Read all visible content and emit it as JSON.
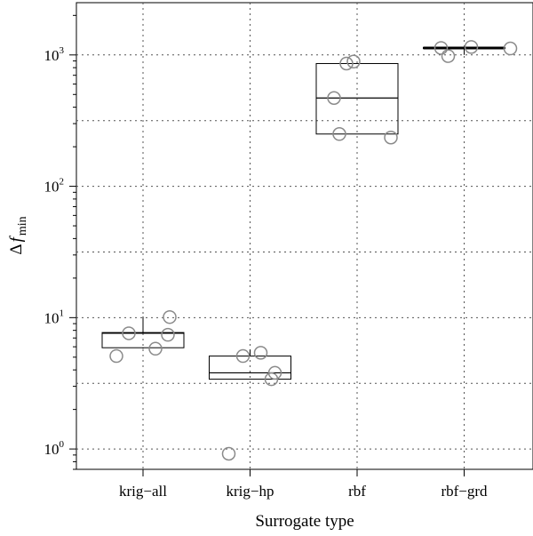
{
  "chart_data": {
    "type": "box",
    "scale": {
      "y": "log10"
    },
    "ylim": [
      0.7,
      2500
    ],
    "xlabel": "Surrogate type",
    "ylabel_main": "Δ",
    "ylabel_italic": "f",
    "ylabel_sub": "min",
    "categories": [
      "krig−all",
      "krig−hp",
      "rbf",
      "rbf−grd"
    ],
    "y_ticks": [
      {
        "value": 1,
        "base": "10",
        "exp": "0"
      },
      {
        "value": 10,
        "base": "10",
        "exp": "1"
      },
      {
        "value": 100,
        "base": "10",
        "exp": "2"
      },
      {
        "value": 1000,
        "base": "10",
        "exp": "3"
      }
    ],
    "grid": true,
    "series": [
      {
        "category": "krig−all",
        "box": {
          "whisker_low": 5.8,
          "q1": 5.9,
          "median": 7.6,
          "q3": 7.7,
          "whisker_high": 10.2
        },
        "points": [
          5.1,
          5.8,
          7.6,
          7.4,
          10.1
        ]
      },
      {
        "category": "krig−hp",
        "box": {
          "whisker_low": 3.4,
          "q1": 3.4,
          "median": 3.8,
          "q3": 5.1,
          "whisker_high": 5.7
        },
        "points": [
          0.92,
          5.1,
          5.4,
          3.4,
          3.8
        ]
      },
      {
        "category": "rbf",
        "box": {
          "whisker_low": 250,
          "q1": 250,
          "median": 470,
          "q3": 860,
          "whisker_high": 860
        },
        "points": [
          470,
          860,
          890,
          250,
          235
        ]
      },
      {
        "category": "rbf−grd",
        "box": {
          "whisker_low": 1000,
          "q1": 1120,
          "median": 1130,
          "q3": 1140,
          "whisker_high": 1150
        },
        "points": [
          1130,
          980,
          1150,
          1120
        ]
      }
    ],
    "colors": {
      "axis": "#000000",
      "grid": "#555555",
      "points": "#8a8a8a",
      "box": "#000000"
    }
  }
}
